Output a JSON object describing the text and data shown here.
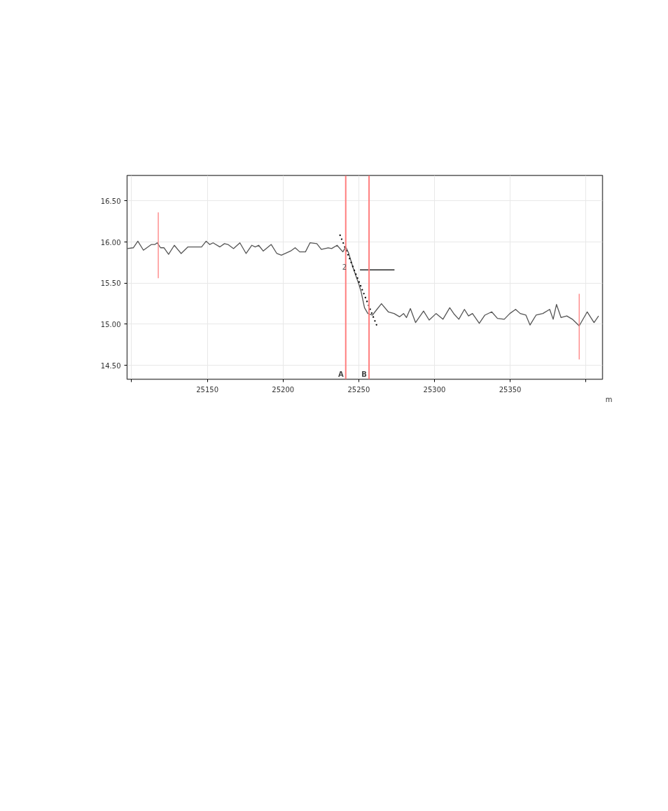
{
  "chart_data": {
    "type": "line",
    "xlabel": "m",
    "xlim": [
      25097,
      25411
    ],
    "ylim": [
      14.33,
      16.81
    ],
    "xticks": [
      {
        "value": 25100,
        "label": null
      },
      25150,
      25200,
      25250,
      25300,
      25350,
      {
        "value": 25400,
        "label": null
      }
    ],
    "yticks": [
      {
        "value": 14.5,
        "label": "14.50"
      },
      {
        "value": 15.0,
        "label": "15.00"
      },
      {
        "value": 15.5,
        "label": "15.50"
      },
      {
        "value": 16.0,
        "label": "16.00"
      },
      {
        "value": 16.5,
        "label": "16.50"
      }
    ],
    "grid": true,
    "series": [
      {
        "color": "#555555",
        "line_style": "solid",
        "x": [
          25097.3,
          25101.1,
          25104.1,
          25107.8,
          25113.1,
          25115.4,
          25116.9,
          25119.1,
          25121.4,
          25124.4,
          25128.2,
          25132.7,
          25137.2,
          25141.7,
          25146.2,
          25149.2,
          25151.5,
          25153.8,
          25158.3,
          25161.3,
          25163.6,
          25167.3,
          25171.5,
          25175.6,
          25179.4,
          25181.6,
          25183.9,
          25186.9,
          25192.2,
          25195.9,
          25198.9,
          25205.0,
          25208.0,
          25211.0,
          25214.8,
          25217.8,
          25222.3,
          25225.3,
          25229.8,
          25232.1,
          25235.7,
          25239.5,
          25241.4,
          25243.2,
          25246.2,
          25250.0,
          25251.5,
          25253.8,
          25256.0,
          25259.0,
          25262.0,
          25265.0,
          25269.5,
          25273.3,
          25277.0,
          25279.6,
          25281.5,
          25284.1,
          25287.5,
          25292.8,
          25296.5,
          25301.1,
          25305.6,
          25310.1,
          25313.1,
          25316.1,
          25319.8,
          25322.5,
          25325.1,
          25329.6,
          25333.3,
          25337.8,
          25341.6,
          25346.1,
          25349.8,
          25353.6,
          25356.6,
          25360.4,
          25363.1,
          25367.1,
          25371.6,
          25376.1,
          25378.4,
          25380.6,
          25383.6,
          25387.4,
          25391.1,
          25395.6,
          25400.9,
          25405.4,
          25408.4
        ],
        "values": [
          15.92,
          15.93,
          16.01,
          15.9,
          15.97,
          15.97,
          15.99,
          15.93,
          15.93,
          15.85,
          15.96,
          15.86,
          15.94,
          15.94,
          15.94,
          16.01,
          15.97,
          15.99,
          15.94,
          15.98,
          15.97,
          15.92,
          15.99,
          15.86,
          15.96,
          15.94,
          15.96,
          15.89,
          15.97,
          15.86,
          15.84,
          15.89,
          15.93,
          15.88,
          15.88,
          15.99,
          15.98,
          15.91,
          15.93,
          15.92,
          15.96,
          15.88,
          15.94,
          15.87,
          15.69,
          15.49,
          15.4,
          15.2,
          15.13,
          15.11,
          15.18,
          15.25,
          15.15,
          15.13,
          15.09,
          15.13,
          15.08,
          15.19,
          15.02,
          15.16,
          15.05,
          15.13,
          15.06,
          15.2,
          15.12,
          15.06,
          15.18,
          15.1,
          15.13,
          15.01,
          15.11,
          15.15,
          15.07,
          15.06,
          15.13,
          15.18,
          15.13,
          15.11,
          14.99,
          15.11,
          15.13,
          15.18,
          15.06,
          15.24,
          15.08,
          15.1,
          15.06,
          14.98,
          15.15,
          15.02,
          15.1
        ]
      },
      {
        "color": "#ff7f7f",
        "line_style": "solid",
        "x": [
          25117.6,
          25117.6
        ],
        "values": [
          15.56,
          16.36
        ]
      },
      {
        "color": "#ff7f7f",
        "line_style": "solid",
        "x": [
          25395.6,
          25395.6
        ],
        "values": [
          14.57,
          15.37
        ]
      },
      {
        "color": "#000000",
        "line_style": "dotted",
        "x": [
          25237.5,
          25262.0
        ],
        "values": [
          16.09,
          14.98
        ]
      },
      {
        "color": "#000000",
        "line_style": "solid",
        "x": [
          25250.8,
          25273.6
        ],
        "values": [
          15.66,
          15.66
        ]
      }
    ],
    "ref_lines": [
      {
        "axis": "x",
        "value": 25241.4,
        "label": "A",
        "color": "#ff7f7f"
      },
      {
        "axis": "x",
        "value": 25256.8,
        "label": "B",
        "color": "#ff7f7f"
      }
    ],
    "annotations": [
      {
        "text": "2",
        "x": 25240.5,
        "y": 15.7
      }
    ]
  }
}
